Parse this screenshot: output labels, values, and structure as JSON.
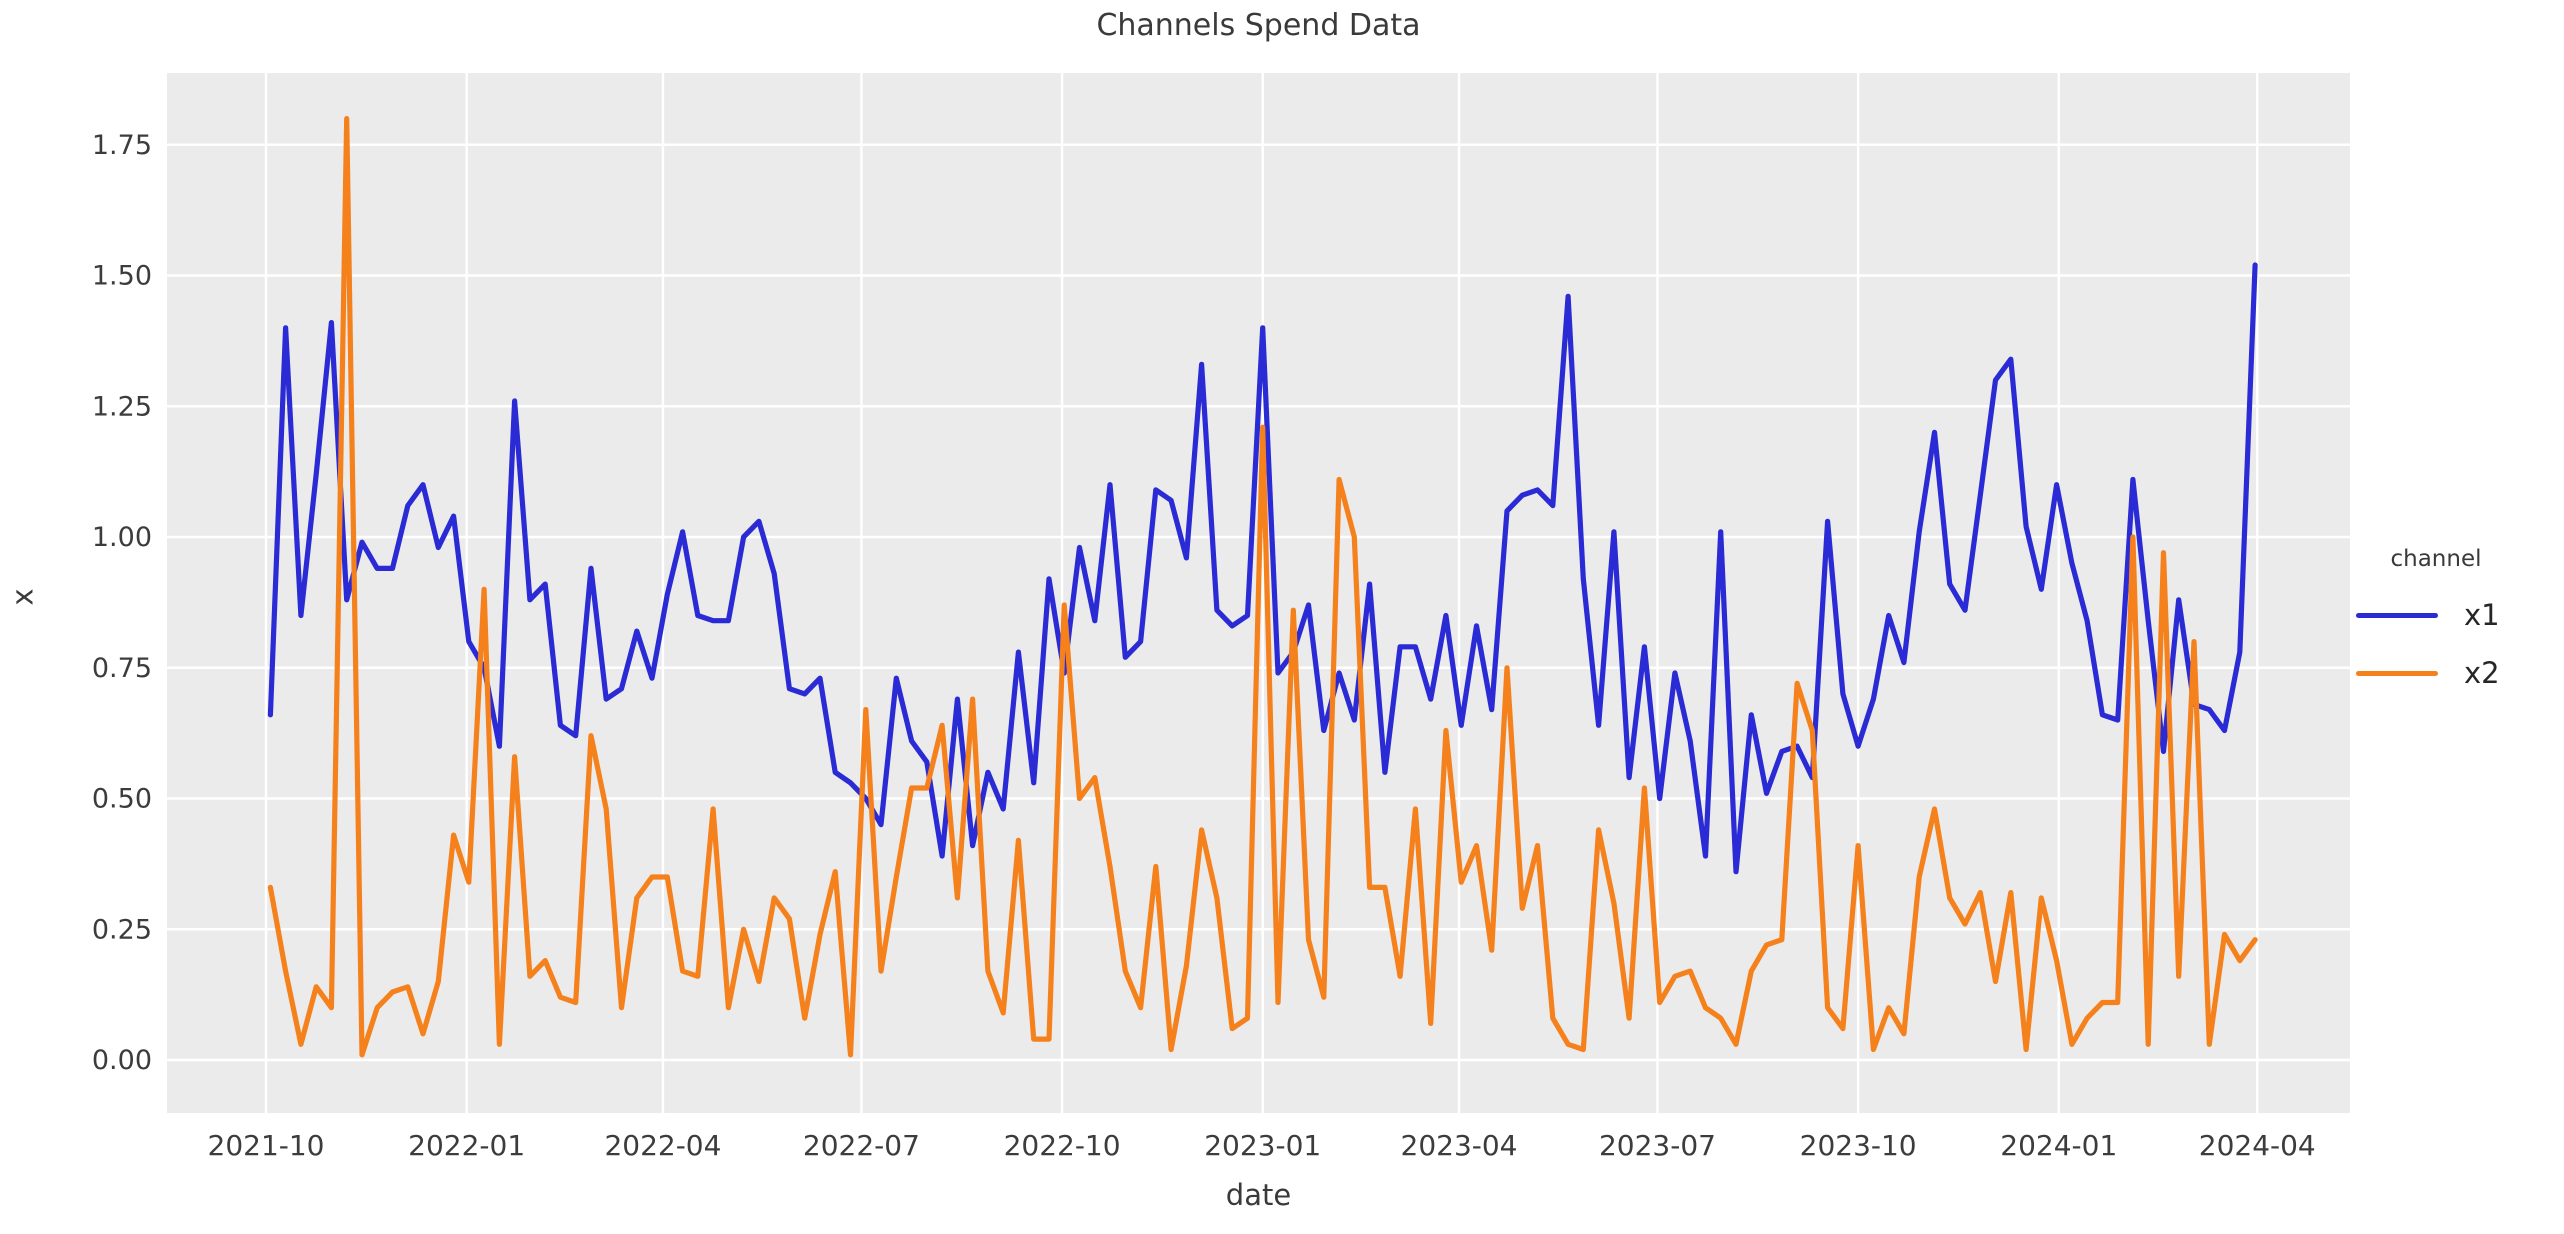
{
  "title": "Channels Spend Data",
  "axes": {
    "x_label": "date",
    "y_label": "x",
    "x_ticks": [
      "2021-10",
      "2022-01",
      "2022-04",
      "2022-07",
      "2022-10",
      "2023-01",
      "2023-04",
      "2023-07",
      "2023-10",
      "2024-01",
      "2024-04"
    ],
    "y_ticks": [
      "0.00",
      "0.25",
      "0.50",
      "0.75",
      "1.00",
      "1.25",
      "1.50",
      "1.75"
    ]
  },
  "legend": {
    "title": "channel",
    "items": [
      {
        "label": "x1",
        "color": "#2b2bd5"
      },
      {
        "label": "x2",
        "color": "#f5811d"
      }
    ]
  },
  "colors": {
    "plot_background": "#ebebeb",
    "gridline": "#ffffff",
    "text": "#3a3a3a",
    "series_x1": "#2b2bd5",
    "series_x2": "#f5811d"
  },
  "chart_data": {
    "type": "line",
    "title": "Channels Spend Data",
    "xlabel": "date",
    "ylabel": "x",
    "ylim": [
      -0.101,
      1.887
    ],
    "y_tick_values": [
      0,
      0.25,
      0.5,
      0.75,
      1.0,
      1.25,
      1.5,
      1.75
    ],
    "x_tick_dates": [
      "2021-10-01",
      "2022-01-01",
      "2022-04-01",
      "2022-07-01",
      "2022-10-01",
      "2023-01-01",
      "2023-04-01",
      "2023-07-01",
      "2023-10-01",
      "2024-01-01",
      "2024-04-01"
    ],
    "grid": true,
    "legend_position": "right",
    "x": [
      "2021-10-03",
      "2021-10-10",
      "2021-10-17",
      "2021-10-24",
      "2021-10-31",
      "2021-11-07",
      "2021-11-14",
      "2021-11-21",
      "2021-11-28",
      "2021-12-05",
      "2021-12-12",
      "2021-12-19",
      "2021-12-26",
      "2022-01-02",
      "2022-01-09",
      "2022-01-16",
      "2022-01-23",
      "2022-01-30",
      "2022-02-06",
      "2022-02-13",
      "2022-02-20",
      "2022-02-27",
      "2022-03-06",
      "2022-03-13",
      "2022-03-20",
      "2022-03-27",
      "2022-04-03",
      "2022-04-10",
      "2022-04-17",
      "2022-04-24",
      "2022-05-01",
      "2022-05-08",
      "2022-05-15",
      "2022-05-22",
      "2022-05-29",
      "2022-06-05",
      "2022-06-12",
      "2022-06-19",
      "2022-06-26",
      "2022-07-03",
      "2022-07-10",
      "2022-07-17",
      "2022-07-24",
      "2022-07-31",
      "2022-08-07",
      "2022-08-14",
      "2022-08-21",
      "2022-08-28",
      "2022-09-04",
      "2022-09-11",
      "2022-09-18",
      "2022-09-25",
      "2022-10-02",
      "2022-10-09",
      "2022-10-16",
      "2022-10-23",
      "2022-10-30",
      "2022-11-06",
      "2022-11-13",
      "2022-11-20",
      "2022-11-27",
      "2022-12-04",
      "2022-12-11",
      "2022-12-18",
      "2022-12-25",
      "2023-01-01",
      "2023-01-08",
      "2023-01-15",
      "2023-01-22",
      "2023-01-29",
      "2023-02-05",
      "2023-02-12",
      "2023-02-19",
      "2023-02-26",
      "2023-03-05",
      "2023-03-12",
      "2023-03-19",
      "2023-03-26",
      "2023-04-02",
      "2023-04-09",
      "2023-04-16",
      "2023-04-23",
      "2023-04-30",
      "2023-05-07",
      "2023-05-14",
      "2023-05-21",
      "2023-05-28",
      "2023-06-04",
      "2023-06-11",
      "2023-06-18",
      "2023-06-25",
      "2023-07-02",
      "2023-07-09",
      "2023-07-16",
      "2023-07-23",
      "2023-07-30",
      "2023-08-06",
      "2023-08-13",
      "2023-08-20",
      "2023-08-27",
      "2023-09-03",
      "2023-09-10",
      "2023-09-17",
      "2023-09-24",
      "2023-10-01",
      "2023-10-08",
      "2023-10-15",
      "2023-10-22",
      "2023-10-29",
      "2023-11-05",
      "2023-11-12",
      "2023-11-19",
      "2023-11-26",
      "2023-12-03",
      "2023-12-10",
      "2023-12-17",
      "2023-12-24",
      "2023-12-31",
      "2024-01-07",
      "2024-01-14",
      "2024-01-21",
      "2024-01-28",
      "2024-02-04",
      "2024-02-11",
      "2024-02-18",
      "2024-02-25",
      "2024-03-03",
      "2024-03-10",
      "2024-03-17",
      "2024-03-24",
      "2024-03-31"
    ],
    "series": [
      {
        "name": "x1",
        "color": "#2b2bd5",
        "values": [
          0.66,
          1.4,
          0.85,
          1.12,
          1.41,
          0.88,
          0.99,
          0.94,
          0.94,
          1.06,
          1.1,
          0.98,
          1.04,
          0.8,
          0.75,
          0.6,
          1.26,
          0.88,
          0.91,
          0.64,
          0.62,
          0.94,
          0.69,
          0.71,
          0.82,
          0.73,
          0.89,
          1.01,
          0.85,
          0.84,
          0.84,
          1.0,
          1.03,
          0.93,
          0.71,
          0.7,
          0.73,
          0.55,
          0.53,
          0.5,
          0.45,
          0.73,
          0.61,
          0.57,
          0.39,
          0.69,
          0.41,
          0.55,
          0.48,
          0.78,
          0.53,
          0.92,
          0.74,
          0.98,
          0.84,
          1.1,
          0.77,
          0.8,
          1.09,
          1.07,
          0.96,
          1.33,
          0.86,
          0.83,
          0.85,
          1.4,
          0.74,
          0.78,
          0.87,
          0.63,
          0.74,
          0.65,
          0.91,
          0.55,
          0.79,
          0.79,
          0.69,
          0.85,
          0.64,
          0.83,
          0.67,
          1.05,
          1.08,
          1.09,
          1.06,
          1.46,
          0.92,
          0.64,
          1.01,
          0.54,
          0.79,
          0.5,
          0.74,
          0.61,
          0.39,
          1.01,
          0.36,
          0.66,
          0.51,
          0.59,
          0.6,
          0.54,
          1.03,
          0.7,
          0.6,
          0.69,
          0.85,
          0.76,
          1.01,
          1.2,
          0.91,
          0.86,
          1.08,
          1.3,
          1.34,
          1.02,
          0.9,
          1.1,
          0.95,
          0.84,
          0.66,
          0.65,
          1.11,
          0.84,
          0.59,
          0.88,
          0.68,
          0.67,
          0.63,
          0.78,
          1.52
        ]
      },
      {
        "name": "x2",
        "color": "#f5811d",
        "values": [
          0.33,
          0.17,
          0.03,
          0.14,
          0.1,
          1.8,
          0.01,
          0.1,
          0.13,
          0.14,
          0.05,
          0.15,
          0.43,
          0.34,
          0.9,
          0.03,
          0.58,
          0.16,
          0.19,
          0.12,
          0.11,
          0.62,
          0.48,
          0.1,
          0.31,
          0.35,
          0.35,
          0.17,
          0.16,
          0.48,
          0.1,
          0.25,
          0.15,
          0.31,
          0.27,
          0.08,
          0.24,
          0.36,
          0.01,
          0.67,
          0.17,
          0.35,
          0.52,
          0.52,
          0.64,
          0.31,
          0.69,
          0.17,
          0.09,
          0.42,
          0.04,
          0.04,
          0.87,
          0.5,
          0.54,
          0.37,
          0.17,
          0.1,
          0.37,
          0.02,
          0.18,
          0.44,
          0.31,
          0.06,
          0.08,
          1.21,
          0.11,
          0.86,
          0.23,
          0.12,
          1.11,
          1.0,
          0.33,
          0.33,
          0.16,
          0.48,
          0.07,
          0.63,
          0.34,
          0.41,
          0.21,
          0.75,
          0.29,
          0.41,
          0.08,
          0.03,
          0.02,
          0.44,
          0.3,
          0.08,
          0.52,
          0.11,
          0.16,
          0.17,
          0.1,
          0.08,
          0.03,
          0.17,
          0.22,
          0.23,
          0.72,
          0.63,
          0.1,
          0.06,
          0.41,
          0.02,
          0.1,
          0.05,
          0.35,
          0.48,
          0.31,
          0.26,
          0.32,
          0.15,
          0.32,
          0.02,
          0.31,
          0.19,
          0.03,
          0.08,
          0.11,
          0.11,
          1.0,
          0.03,
          0.97,
          0.16,
          0.8,
          0.03,
          0.24,
          0.19,
          0.23
        ]
      }
    ]
  }
}
